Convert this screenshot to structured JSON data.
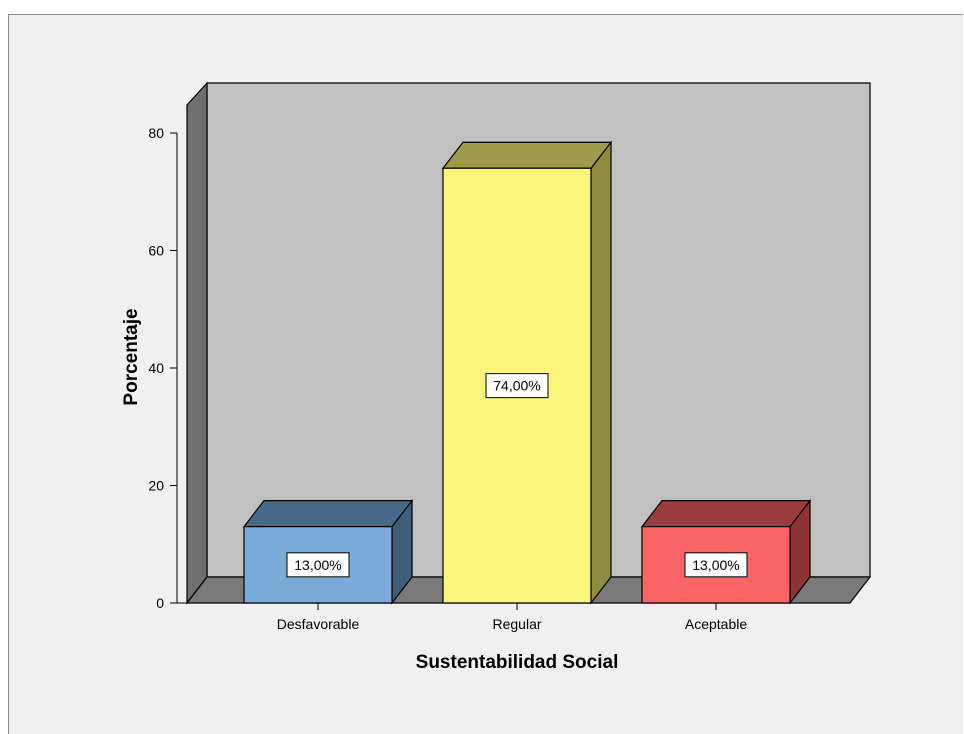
{
  "chart_data": {
    "type": "bar",
    "xlabel": "Sustentabilidad Social",
    "ylabel": "Porcentaje",
    "categories": [
      "Desfavorable",
      "Regular",
      "Aceptable"
    ],
    "values": [
      13,
      74,
      13
    ],
    "data_labels": [
      "13,00%",
      "74,00%",
      "13,00%"
    ],
    "colors": {
      "front": [
        "#7aaad8",
        "#faf57a",
        "#fa6464"
      ],
      "top": [
        "#476a8a",
        "#9b9b4a",
        "#9c3b3b"
      ],
      "side": [
        "#3f5e7c",
        "#8f8c3f",
        "#8f3434"
      ]
    },
    "yticks": [
      "0",
      "20",
      "40",
      "60",
      "80"
    ],
    "ylim": [
      0,
      80
    ],
    "style": "3d",
    "grid": false,
    "wall_colors": {
      "back": "#c0c0c0",
      "side": "#6e6e6e",
      "floor": "#7a7a7a"
    }
  }
}
